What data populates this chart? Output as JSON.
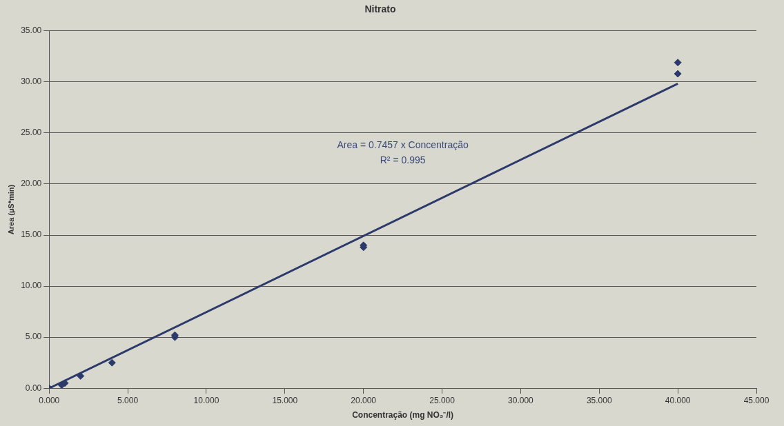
{
  "chart_data": {
    "type": "scatter",
    "title": "Nitrato",
    "xlabel": "Concentração (mg NO₃⁻/l)",
    "ylabel": "Area (µS*min)",
    "annotations": [
      "Area = 0.7457 x Concentração",
      "R² = 0.995"
    ],
    "series": [
      {
        "color": "#2b3a6b",
        "marker": "diamond",
        "x": [
          0,
          0.8,
          1,
          2,
          4,
          8,
          8,
          20,
          20,
          40,
          40
        ],
        "values": [
          0,
          0.3,
          0.5,
          1.2,
          2.5,
          5.0,
          5.2,
          13.8,
          14.0,
          30.8,
          31.9
        ]
      },
      {
        "type": "line",
        "color": "#2b3a6b",
        "marker": "none",
        "x": [
          0,
          40
        ],
        "values": [
          0,
          29.83
        ]
      }
    ],
    "xlim": [
      0,
      45
    ],
    "xticks": [
      {
        "value": 0,
        "label": "0.000"
      },
      {
        "value": 5,
        "label": "5.000"
      },
      {
        "value": 10,
        "label": "10.000"
      },
      {
        "value": 15,
        "label": "15.000"
      },
      {
        "value": 20,
        "label": "20.000"
      },
      {
        "value": 25,
        "label": "25.000"
      },
      {
        "value": 30,
        "label": "30.000"
      },
      {
        "value": 35,
        "label": "35.000"
      },
      {
        "value": 40,
        "label": "40.000"
      },
      {
        "value": 45,
        "label": "45.000"
      }
    ],
    "ylim": [
      0,
      35
    ],
    "yticks": [
      {
        "value": 0,
        "label": "0.00"
      },
      {
        "value": 5,
        "label": "5.00"
      },
      {
        "value": 10,
        "label": "10.00"
      },
      {
        "value": 15,
        "label": "15.00"
      },
      {
        "value": 20,
        "label": "20.00"
      },
      {
        "value": 25,
        "label": "25.00"
      },
      {
        "value": 30,
        "label": "30.00"
      },
      {
        "value": 35,
        "label": "35.00"
      }
    ],
    "grid": "y",
    "legend": false
  }
}
